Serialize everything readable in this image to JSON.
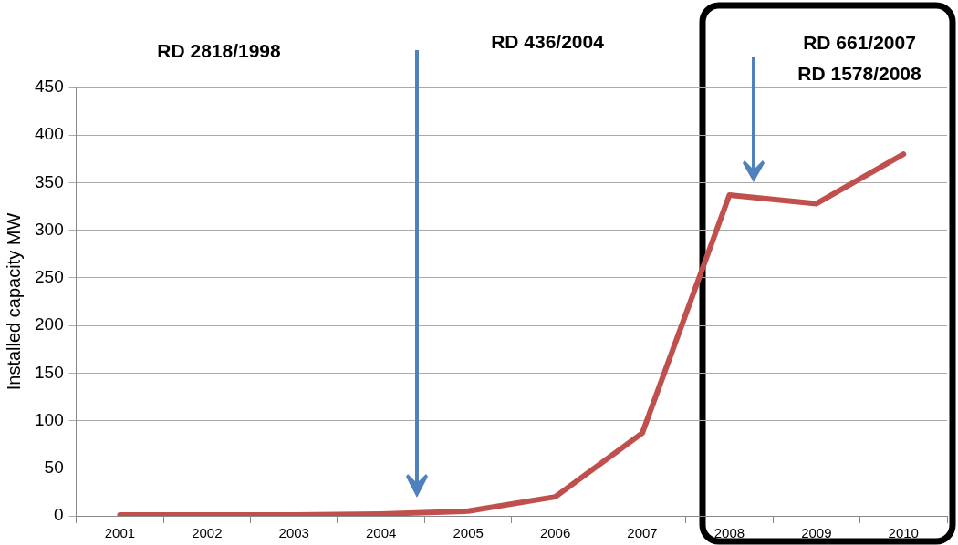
{
  "chart_data": {
    "type": "line",
    "ylabel": "Installed capacity MW",
    "annotations": [
      "RD 2818/1998",
      "RD 436/2004",
      "RD 661/2007",
      "RD 1578/2008"
    ],
    "categories": [
      "2001",
      "2002",
      "2003",
      "2004",
      "2005",
      "2006",
      "2007",
      "2008",
      "2009",
      "2010"
    ],
    "series": [
      {
        "color": "#c0504d",
        "values": [
          1,
          1,
          1,
          2,
          5,
          20,
          87,
          337,
          328,
          380
        ]
      }
    ],
    "ylim": [
      0,
      450
    ],
    "yticks": [
      0,
      50,
      100,
      150,
      200,
      250,
      300,
      350,
      400,
      450
    ],
    "grid": "y",
    "legend": false,
    "marker": "none",
    "line_style": "solid"
  }
}
